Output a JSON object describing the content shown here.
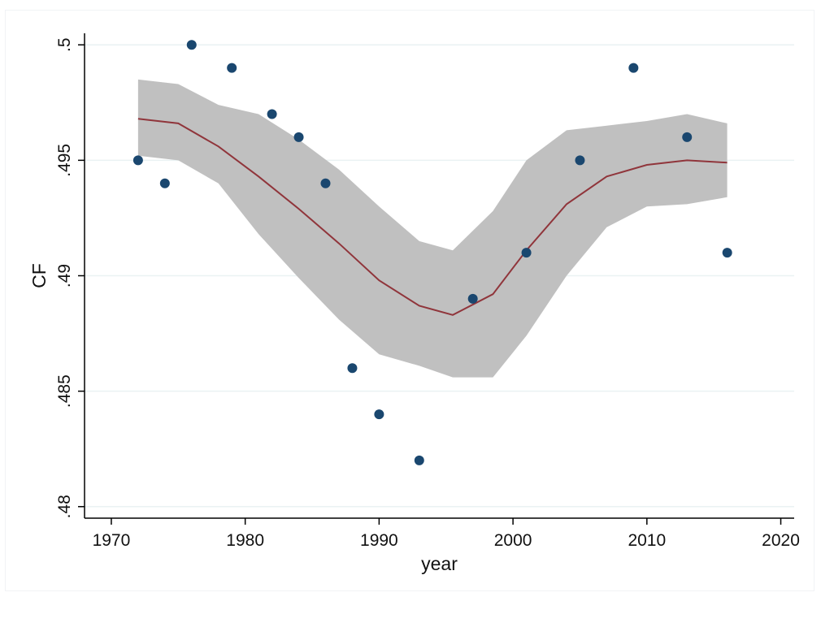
{
  "chart_data": {
    "type": "scatter",
    "title": "",
    "xlabel": "year",
    "ylabel": "CF",
    "xlim": [
      1968,
      2021
    ],
    "ylim": [
      0.4795,
      0.5005
    ],
    "x_ticks": [
      1970,
      1980,
      1990,
      2000,
      2010,
      2020
    ],
    "x_tick_labels": [
      "1970",
      "1980",
      "1990",
      "2000",
      "2010",
      "2020"
    ],
    "y_ticks": [
      0.48,
      0.485,
      0.49,
      0.495,
      0.5
    ],
    "y_tick_labels": [
      ".48",
      ".485",
      ".49",
      ".495",
      ".5"
    ],
    "grid": true,
    "legend": "none",
    "points": {
      "x": [
        1972,
        1974,
        1976,
        1979,
        1982,
        1984,
        1986,
        1988,
        1990,
        1993,
        1997,
        2001,
        2005,
        2009,
        2013,
        2016
      ],
      "y": [
        0.495,
        0.494,
        0.5,
        0.499,
        0.497,
        0.496,
        0.494,
        0.486,
        0.484,
        0.482,
        0.489,
        0.491,
        0.495,
        0.499,
        0.496,
        0.491
      ],
      "color": "#1a476f"
    },
    "fit_line": {
      "x": [
        1972,
        1975,
        1978,
        1981,
        1984,
        1987,
        1990,
        1993,
        1995.5,
        1998.5,
        2001,
        2004,
        2007,
        2010,
        2013,
        2016
      ],
      "y": [
        0.4968,
        0.4966,
        0.4956,
        0.4943,
        0.4929,
        0.4914,
        0.4898,
        0.4887,
        0.4883,
        0.4892,
        0.4911,
        0.4931,
        0.4943,
        0.4948,
        0.495,
        0.4949
      ],
      "color": "#90353b"
    },
    "ci_band": {
      "x": [
        1972,
        1975,
        1978,
        1981,
        1984,
        1987,
        1990,
        1993,
        1995.5,
        1998.5,
        2001,
        2004,
        2007,
        2010,
        2013,
        2016
      ],
      "upper": [
        0.4985,
        0.4983,
        0.4974,
        0.497,
        0.4959,
        0.4946,
        0.493,
        0.4915,
        0.4911,
        0.4928,
        0.495,
        0.4963,
        0.4965,
        0.4967,
        0.497,
        0.4966
      ],
      "lower": [
        0.4952,
        0.495,
        0.494,
        0.4918,
        0.4899,
        0.4881,
        0.4866,
        0.4861,
        0.4856,
        0.4856,
        0.4874,
        0.49,
        0.4921,
        0.493,
        0.4931,
        0.4934
      ],
      "color": "#c0c0c0"
    },
    "colors": {
      "grid": "#eaf2f3",
      "axis": "#000000"
    }
  }
}
